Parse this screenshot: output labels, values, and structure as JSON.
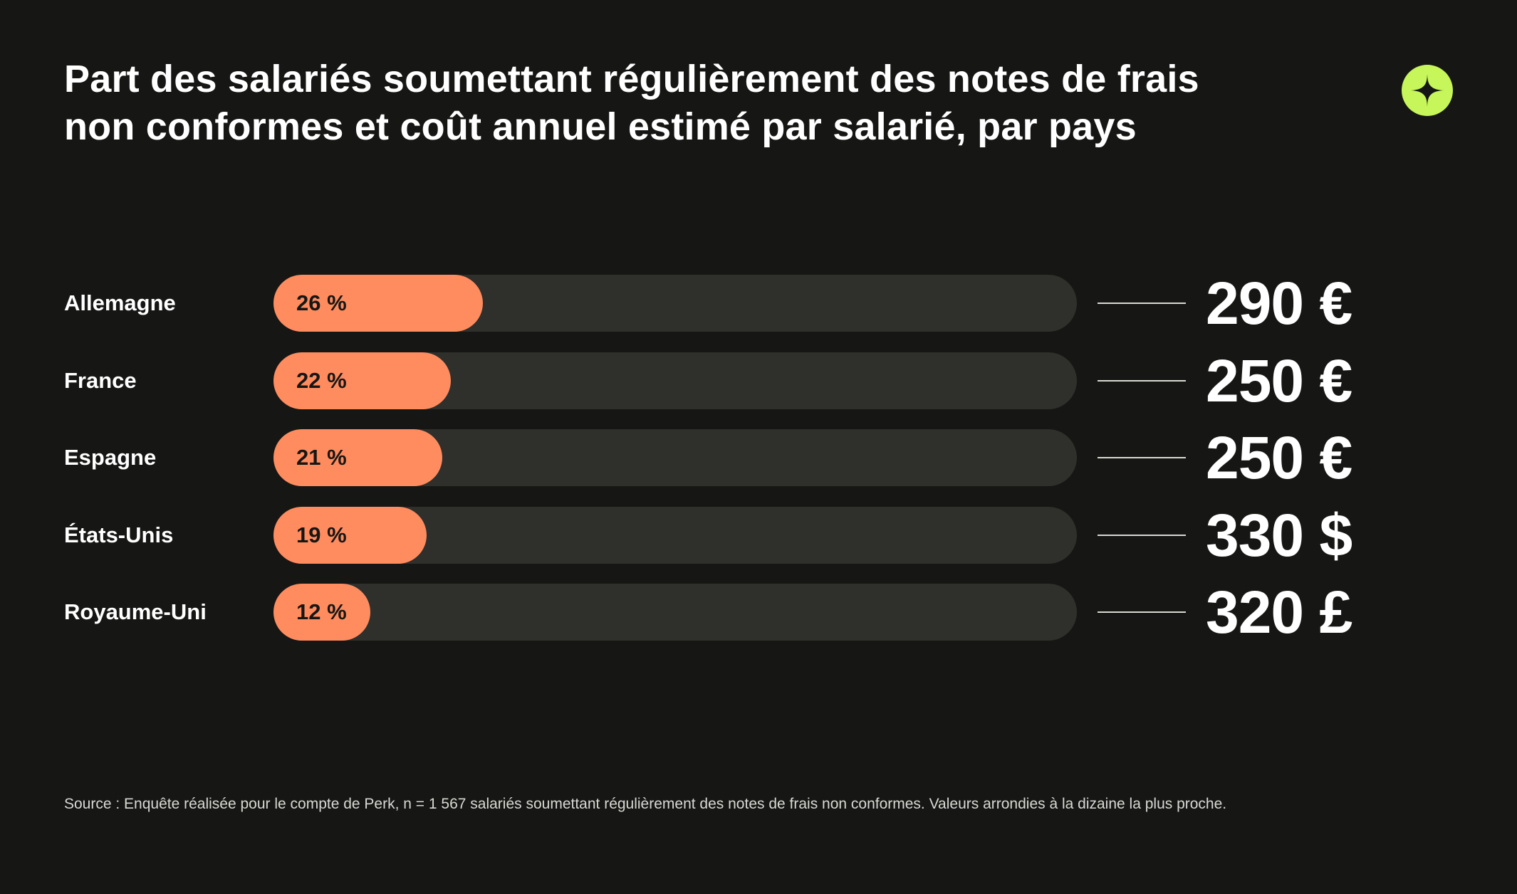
{
  "title": "Part des salariés soumettant régulièrement des notes de frais non conformes et coût annuel estimé par salarié, par pays",
  "logo_icon": "plus-sparkle-icon",
  "colors": {
    "background": "#161614",
    "bar_fill": "#ff8c5f",
    "bar_track": "#2f2f2b",
    "logo": "#c6f65a"
  },
  "chart_data": {
    "type": "bar",
    "orientation": "horizontal",
    "categories": [
      "Allemagne",
      "France",
      "Espagne",
      "États-Unis",
      "Royaume-Uni"
    ],
    "series": [
      {
        "values": [
          26,
          22,
          21,
          19,
          12
        ]
      }
    ],
    "value_labels": [
      "26 %",
      "22 %",
      "21 %",
      "19 %",
      "12 %"
    ],
    "costs": [
      "290 €",
      "250 €",
      "250 €",
      "330 $",
      "320 £"
    ],
    "xlim": [
      0,
      100
    ],
    "grid": false,
    "legend": "none"
  },
  "source": "Source : Enquête réalisée pour le compte de Perk, n = 1 567 salariés soumettant régulièrement des notes de frais non conformes. Valeurs arrondies à la dizaine la plus proche."
}
